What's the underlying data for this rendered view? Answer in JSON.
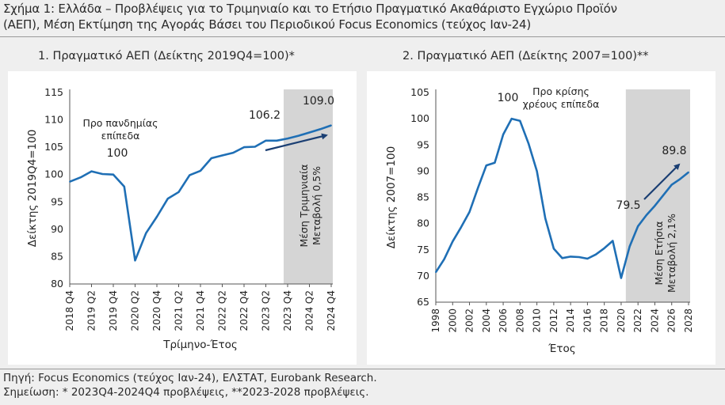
{
  "figure": {
    "title_line1": "Σχήμα 1: Ελλάδα – Προβλέψεις για το Τριμηνιαίο και το Ετήσιο Πραγματικό Ακαθάριστο Εγχώριο Προϊόν",
    "title_line2": "(ΑΕΠ), Μέση Εκτίμηση της Αγοράς Βάσει του Περιοδικού Focus Economics (τεύχος Ιαν-24)",
    "source": "Πηγή: Focus Economics (τεύχος Ιαν-24), ΕΛΣΤΑΤ, Eurobank Research.",
    "note": "Σημείωση: * 2023Q4-2024Q4 προβλέψεις, **2023-2028 προβλέψεις."
  },
  "colors": {
    "line": "#1f6fb5",
    "arrow": "#1b3f73",
    "shade": "#d5d5d5",
    "axis": "#555555",
    "text": "#222222"
  },
  "chart_data": [
    {
      "type": "line",
      "title": "1. Πραγματικό ΑΕΠ (Δείκτης 2019Q4=100)*",
      "xlabel": "Τρίμηνο-Έτος",
      "ylabel": "Δείκτης 2019Q4=100",
      "ylim": [
        80,
        115
      ],
      "yticks": [
        80,
        85,
        90,
        95,
        100,
        105,
        110,
        115
      ],
      "grid": false,
      "categories": [
        "2018 Q4",
        "2019 Q1",
        "2019 Q2",
        "2019 Q3",
        "2019 Q4",
        "2020 Q1",
        "2020 Q2",
        "2020 Q3",
        "2020 Q4",
        "2021 Q1",
        "2021 Q2",
        "2021 Q3",
        "2021 Q4",
        "2022 Q1",
        "2022 Q2",
        "2022 Q3",
        "2022 Q4",
        "2023 Q1",
        "2023 Q2",
        "2023 Q3",
        "2023 Q4",
        "2024 Q1",
        "2024 Q2",
        "2024 Q3",
        "2024 Q4"
      ],
      "tick_labels": [
        "2018 Q4",
        "2019 Q2",
        "2019 Q4",
        "2020 Q2",
        "2020 Q4",
        "2021 Q2",
        "2021 Q4",
        "2022 Q2",
        "2022 Q4",
        "2023 Q2",
        "2023 Q4",
        "2024 Q2",
        "2024 Q4"
      ],
      "series": [
        {
          "name": "Πραγματικό ΑΕΠ",
          "values": [
            98.7,
            99.5,
            100.6,
            100.1,
            100.0,
            97.8,
            84.3,
            89.3,
            92.3,
            95.6,
            96.8,
            99.9,
            100.7,
            103.0,
            103.5,
            104.0,
            105.0,
            105.1,
            106.2,
            106.2,
            106.6,
            107.1,
            107.7,
            108.3,
            109.0
          ]
        }
      ],
      "forecast_start": "2023 Q4",
      "annotations": {
        "pre_pandemic_label": "Προ πανδημίας επίπεδα",
        "pre_pandemic_value": "100",
        "value_2023q2": "106.2",
        "value_2024q4": "109.0",
        "shaded_label_line1": "Μέση Τριμηνιαία",
        "shaded_label_line2": "Μεταβολή 0,5%"
      }
    },
    {
      "type": "line",
      "title": "2. Πραγματικό ΑΕΠ (Δείκτης 2007=100)**",
      "xlabel": "Έτος",
      "ylabel": "Δείκτης 2007=100",
      "ylim": [
        65,
        105
      ],
      "yticks": [
        65,
        70,
        75,
        80,
        85,
        90,
        95,
        100,
        105
      ],
      "grid": false,
      "x": [
        1998,
        1999,
        2000,
        2001,
        2002,
        2003,
        2004,
        2005,
        2006,
        2007,
        2008,
        2009,
        2010,
        2011,
        2012,
        2013,
        2014,
        2015,
        2016,
        2017,
        2018,
        2019,
        2020,
        2021,
        2022,
        2023,
        2024,
        2025,
        2026,
        2027,
        2028
      ],
      "tick_labels": [
        "1998",
        "2000",
        "2002",
        "2004",
        "2006",
        "2008",
        "2010",
        "2012",
        "2014",
        "2016",
        "2018",
        "2020",
        "2022",
        "2024",
        "2026",
        "2028"
      ],
      "series": [
        {
          "name": "Πραγματικό ΑΕΠ",
          "values": [
            70.7,
            73.2,
            76.6,
            79.3,
            82.2,
            86.8,
            91.1,
            91.6,
            97.0,
            100.0,
            99.6,
            95.3,
            90.0,
            81.0,
            75.2,
            73.4,
            73.7,
            73.6,
            73.3,
            74.1,
            75.3,
            76.7,
            69.6,
            75.6,
            79.5,
            81.6,
            83.4,
            85.4,
            87.4,
            88.5,
            89.8
          ]
        }
      ],
      "forecast_start": 2023,
      "annotations": {
        "peak_value": "100",
        "pre_crisis_label": "Προ κρίσης χρέους επίπεδα",
        "value_2022": "79.5",
        "value_2028": "89.8",
        "shaded_label_line1": "Μέση Ετήσια",
        "shaded_label_line2": "Μεταβολή 2,1%"
      }
    }
  ]
}
